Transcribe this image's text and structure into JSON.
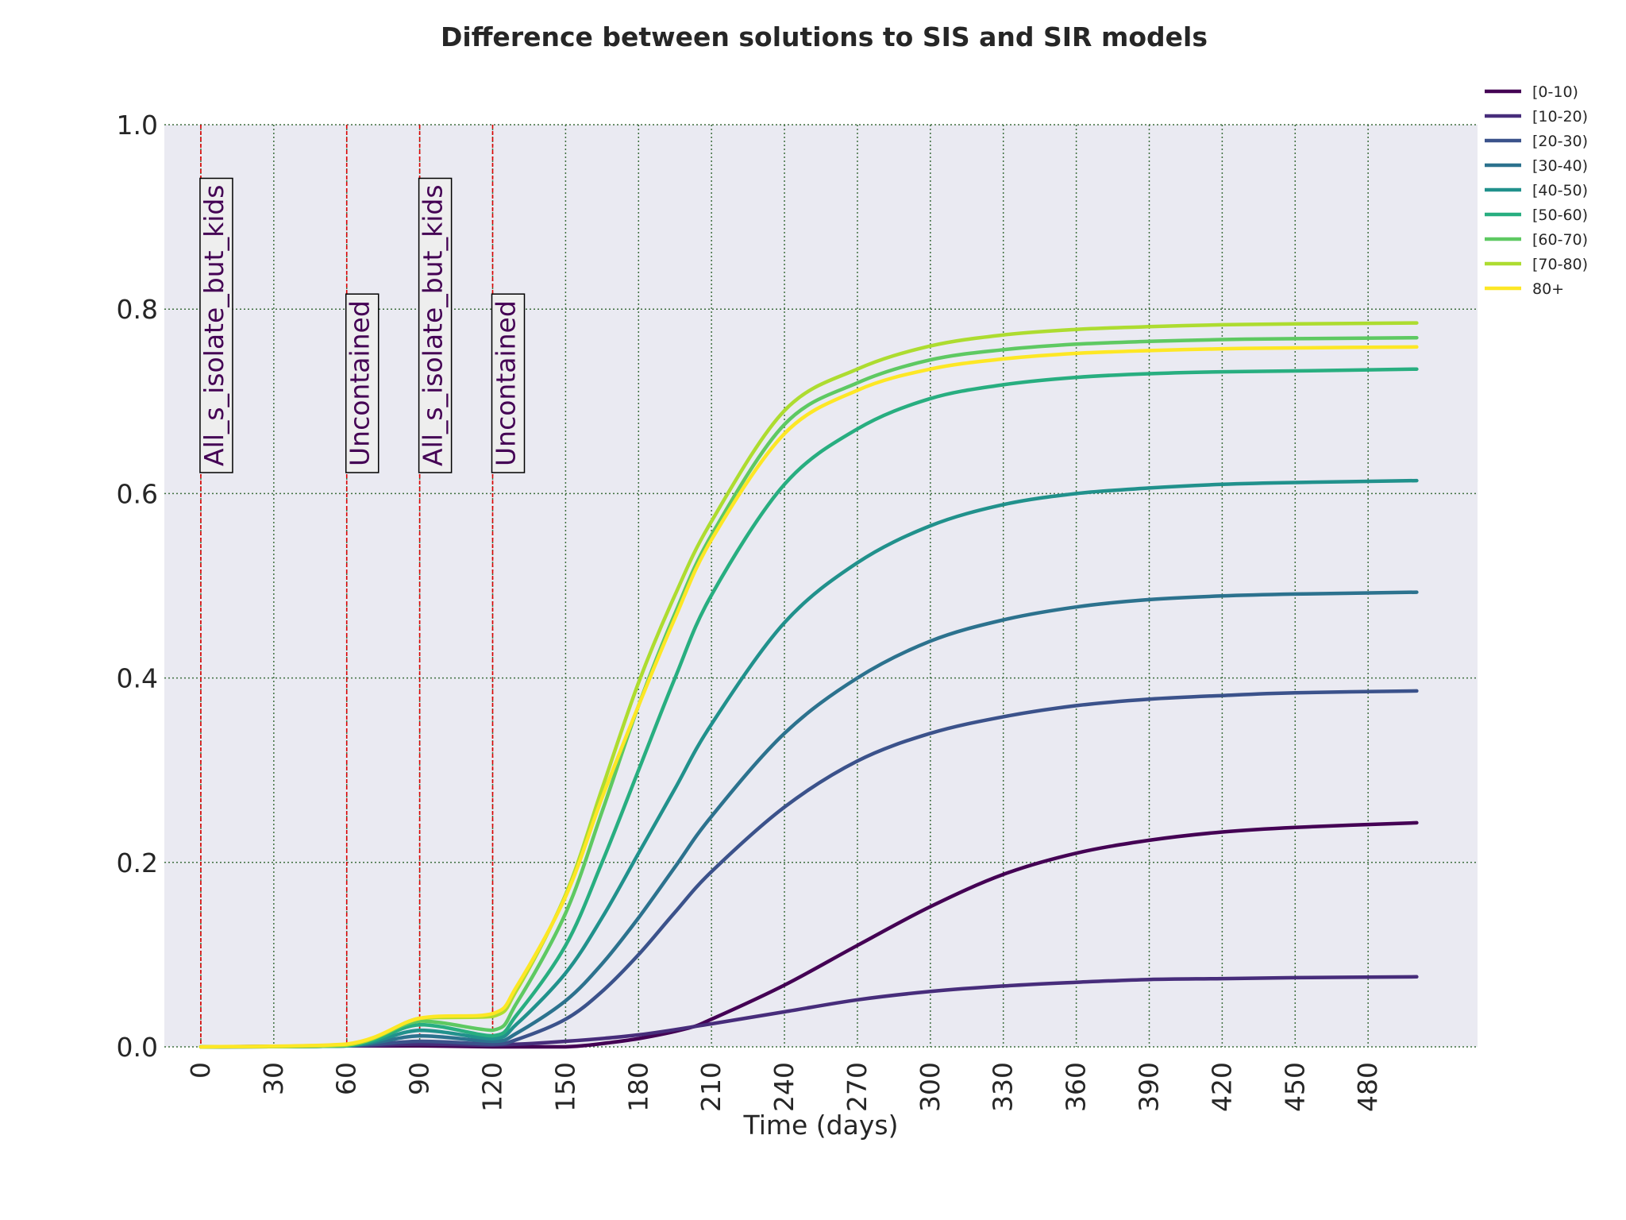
{
  "chart_data": {
    "type": "line",
    "title": "Difference between solutions to SIS and SIR models",
    "xlabel": "Time (days)",
    "ylabel": "",
    "xlim": [
      -15,
      525
    ],
    "ylim": [
      0,
      1.0
    ],
    "x_ticks": [
      0,
      30,
      60,
      90,
      120,
      150,
      180,
      210,
      240,
      270,
      300,
      330,
      360,
      390,
      420,
      450,
      480
    ],
    "y_ticks": [
      0.0,
      0.2,
      0.4,
      0.6,
      0.8,
      1.0
    ],
    "x_tick_labels": [
      "0",
      "30",
      "60",
      "90",
      "120",
      "150",
      "180",
      "210",
      "240",
      "270",
      "300",
      "330",
      "360",
      "390",
      "420",
      "450",
      "480"
    ],
    "y_tick_labels": [
      "0.0",
      "0.2",
      "0.4",
      "0.6",
      "0.8",
      "1.0"
    ],
    "grid": true,
    "legend_position": "outside-top-right",
    "plot_background": "#eaeaf2",
    "phase_line_color": "#dd0000",
    "phases": [
      {
        "x": 0,
        "label": "All_s_isolate_but_kids"
      },
      {
        "x": 60,
        "label": "Uncontained"
      },
      {
        "x": 90,
        "label": "All_s_isolate_but_kids"
      },
      {
        "x": 120,
        "label": "Uncontained"
      }
    ],
    "series": [
      {
        "name": "[0-10)",
        "color": "#440154",
        "x": [
          0,
          60,
          90,
          120,
          130,
          150,
          160,
          180,
          200,
          210,
          240,
          270,
          300,
          330,
          360,
          390,
          420,
          450,
          500
        ],
        "y": [
          0,
          0.001,
          0.001,
          0.0,
          0.0,
          0.0,
          0.002,
          0.009,
          0.02,
          0.03,
          0.067,
          0.11,
          0.152,
          0.187,
          0.21,
          0.224,
          0.233,
          0.238,
          0.243
        ]
      },
      {
        "name": "[10-20)",
        "color": "#472d7b",
        "x": [
          0,
          60,
          90,
          120,
          150,
          180,
          210,
          240,
          270,
          300,
          330,
          360,
          390,
          420,
          450,
          500
        ],
        "y": [
          0,
          0.001,
          0.003,
          0.002,
          0.006,
          0.013,
          0.025,
          0.038,
          0.051,
          0.06,
          0.066,
          0.07,
          0.073,
          0.074,
          0.075,
          0.076
        ]
      },
      {
        "name": "[20-30)",
        "color": "#3b528b",
        "x": [
          0,
          60,
          90,
          120,
          130,
          150,
          165,
          180,
          195,
          210,
          240,
          270,
          300,
          330,
          360,
          390,
          420,
          450,
          500
        ],
        "y": [
          0,
          0.001,
          0.006,
          0.003,
          0.008,
          0.03,
          0.06,
          0.1,
          0.146,
          0.19,
          0.26,
          0.31,
          0.34,
          0.358,
          0.37,
          0.377,
          0.381,
          0.384,
          0.386
        ]
      },
      {
        "name": "[30-40)",
        "color": "#2c728e",
        "x": [
          0,
          60,
          90,
          120,
          130,
          150,
          165,
          180,
          195,
          210,
          240,
          270,
          300,
          330,
          360,
          390,
          420,
          450,
          500
        ],
        "y": [
          0,
          0.001,
          0.012,
          0.006,
          0.015,
          0.05,
          0.09,
          0.14,
          0.195,
          0.25,
          0.34,
          0.4,
          0.44,
          0.463,
          0.477,
          0.485,
          0.489,
          0.491,
          0.493
        ]
      },
      {
        "name": "[40-50)",
        "color": "#21918c",
        "x": [
          0,
          60,
          90,
          120,
          130,
          150,
          165,
          180,
          195,
          210,
          240,
          270,
          300,
          330,
          360,
          390,
          420,
          450,
          500
        ],
        "y": [
          0,
          0.001,
          0.018,
          0.009,
          0.025,
          0.08,
          0.14,
          0.21,
          0.28,
          0.35,
          0.46,
          0.525,
          0.565,
          0.588,
          0.6,
          0.606,
          0.61,
          0.612,
          0.614
        ]
      },
      {
        "name": "[50-60)",
        "color": "#28ae80",
        "x": [
          0,
          60,
          90,
          120,
          130,
          150,
          165,
          180,
          195,
          210,
          240,
          270,
          300,
          330,
          360,
          390,
          420,
          450,
          500
        ],
        "y": [
          0,
          0.001,
          0.024,
          0.012,
          0.035,
          0.11,
          0.2,
          0.3,
          0.4,
          0.49,
          0.61,
          0.67,
          0.703,
          0.718,
          0.726,
          0.73,
          0.732,
          0.733,
          0.735
        ]
      },
      {
        "name": "[60-70)",
        "color": "#5ec962",
        "x": [
          0,
          60,
          90,
          120,
          130,
          150,
          165,
          180,
          195,
          210,
          240,
          270,
          300,
          330,
          360,
          390,
          420,
          450,
          500
        ],
        "y": [
          0,
          0.002,
          0.028,
          0.018,
          0.048,
          0.145,
          0.255,
          0.37,
          0.47,
          0.555,
          0.675,
          0.72,
          0.745,
          0.756,
          0.762,
          0.765,
          0.767,
          0.768,
          0.769
        ]
      },
      {
        "name": "[70-80)",
        "color": "#addc30",
        "x": [
          0,
          60,
          90,
          120,
          130,
          150,
          165,
          180,
          195,
          210,
          240,
          270,
          300,
          330,
          360,
          390,
          420,
          450,
          500
        ],
        "y": [
          0,
          0.002,
          0.031,
          0.033,
          0.062,
          0.165,
          0.28,
          0.395,
          0.49,
          0.57,
          0.69,
          0.735,
          0.76,
          0.772,
          0.778,
          0.781,
          0.783,
          0.784,
          0.785
        ]
      },
      {
        "name": "80+",
        "color": "#fde725",
        "x": [
          0,
          60,
          90,
          120,
          130,
          150,
          165,
          180,
          195,
          210,
          240,
          270,
          300,
          330,
          360,
          390,
          420,
          450,
          500
        ],
        "y": [
          0,
          0.003,
          0.031,
          0.036,
          0.066,
          0.163,
          0.27,
          0.37,
          0.465,
          0.55,
          0.665,
          0.712,
          0.735,
          0.746,
          0.752,
          0.755,
          0.757,
          0.758,
          0.759
        ]
      }
    ]
  }
}
